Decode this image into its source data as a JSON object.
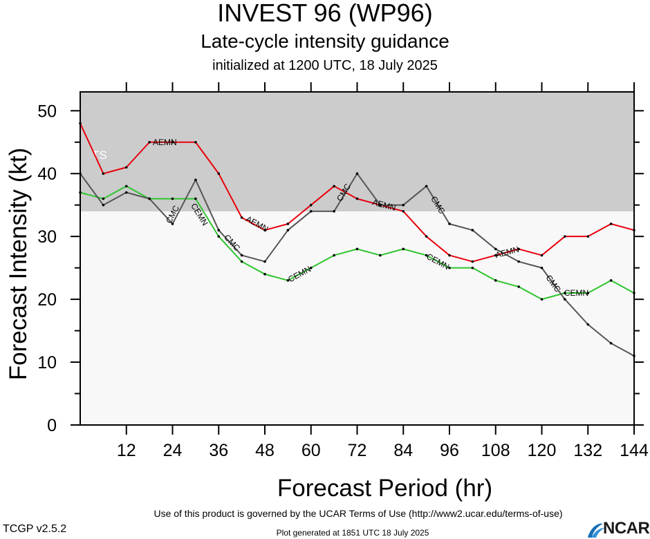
{
  "header": {
    "title": "INVEST 96 (WP96)",
    "subtitle": "Late-cycle intensity guidance",
    "initialized": "initialized at 1200 UTC, 18 July 2025"
  },
  "footer": {
    "terms": "Use of this product is governed by the UCAR Terms of Use (http://www2.ucar.edu/terms-of-use)",
    "version": "TCGP v2.5.2",
    "generated": "Plot generated at 1851 UTC   18 July 2025",
    "logo_text": "NCAR"
  },
  "chart_data": {
    "type": "line",
    "xlabel": "Forecast Period (hr)",
    "ylabel": "Forecast Intensity (kt)",
    "xlim": [
      0,
      144
    ],
    "ylim": [
      0,
      53
    ],
    "x_ticks": [
      12,
      24,
      36,
      48,
      60,
      72,
      84,
      96,
      108,
      120,
      132,
      144
    ],
    "y_ticks": [
      0,
      10,
      20,
      30,
      40,
      50
    ],
    "grid": false,
    "shaded_band": {
      "label": "TS",
      "from": 34,
      "to": 53,
      "color": "#cccccc"
    },
    "plot_background": "#f8f8f8",
    "series": [
      {
        "name": "AEMN",
        "color": "#e8000b",
        "x": [
          0,
          6,
          12,
          18,
          24,
          30,
          36,
          42,
          48,
          54,
          60,
          66,
          72,
          78,
          84,
          90,
          96,
          102,
          108,
          114,
          120,
          126,
          132,
          138,
          144
        ],
        "y": [
          48,
          40,
          41,
          45,
          45,
          45,
          40,
          33,
          31,
          32,
          35,
          38,
          36,
          35,
          34,
          30,
          27,
          26,
          27,
          28,
          27,
          30,
          30,
          32,
          31
        ],
        "labels": [
          {
            "x": 22,
            "y": 45
          },
          {
            "x": 46,
            "y": 32
          },
          {
            "x": 79,
            "y": 35
          },
          {
            "x": 111,
            "y": 27.5
          }
        ]
      },
      {
        "name": "CEMN",
        "color": "#2ec52e",
        "x": [
          0,
          6,
          12,
          18,
          24,
          30,
          36,
          42,
          48,
          54,
          60,
          66,
          72,
          78,
          84,
          90,
          96,
          102,
          108,
          114,
          120,
          126,
          132,
          138,
          144
        ],
        "y": [
          37,
          36,
          38,
          36,
          36,
          36,
          30,
          26,
          24,
          23,
          25,
          27,
          28,
          27,
          28,
          27,
          25,
          25,
          23,
          22,
          20,
          21,
          21,
          23,
          21
        ],
        "labels": [
          {
            "x": 31,
            "y": 33.5
          },
          {
            "x": 57,
            "y": 24
          },
          {
            "x": 93,
            "y": 26
          },
          {
            "x": 129,
            "y": 21
          }
        ]
      },
      {
        "name": "CMC",
        "color": "#555555",
        "x": [
          0,
          6,
          12,
          18,
          24,
          30,
          36,
          42,
          48,
          54,
          60,
          66,
          72,
          78,
          84,
          90,
          96,
          102,
          108,
          114,
          120,
          126,
          132,
          138,
          144
        ],
        "y": [
          40,
          35,
          37,
          36,
          32,
          39,
          31,
          27,
          26,
          31,
          34,
          34,
          40,
          35,
          35,
          38,
          32,
          31,
          28,
          26,
          25,
          20,
          16,
          13,
          11
        ],
        "labels": [
          {
            "x": 24,
            "y": 33.5
          },
          {
            "x": 39.5,
            "y": 29
          },
          {
            "x": 68.5,
            "y": 37
          },
          {
            "x": 93,
            "y": 35
          },
          {
            "x": 123,
            "y": 22.5
          }
        ]
      }
    ]
  }
}
